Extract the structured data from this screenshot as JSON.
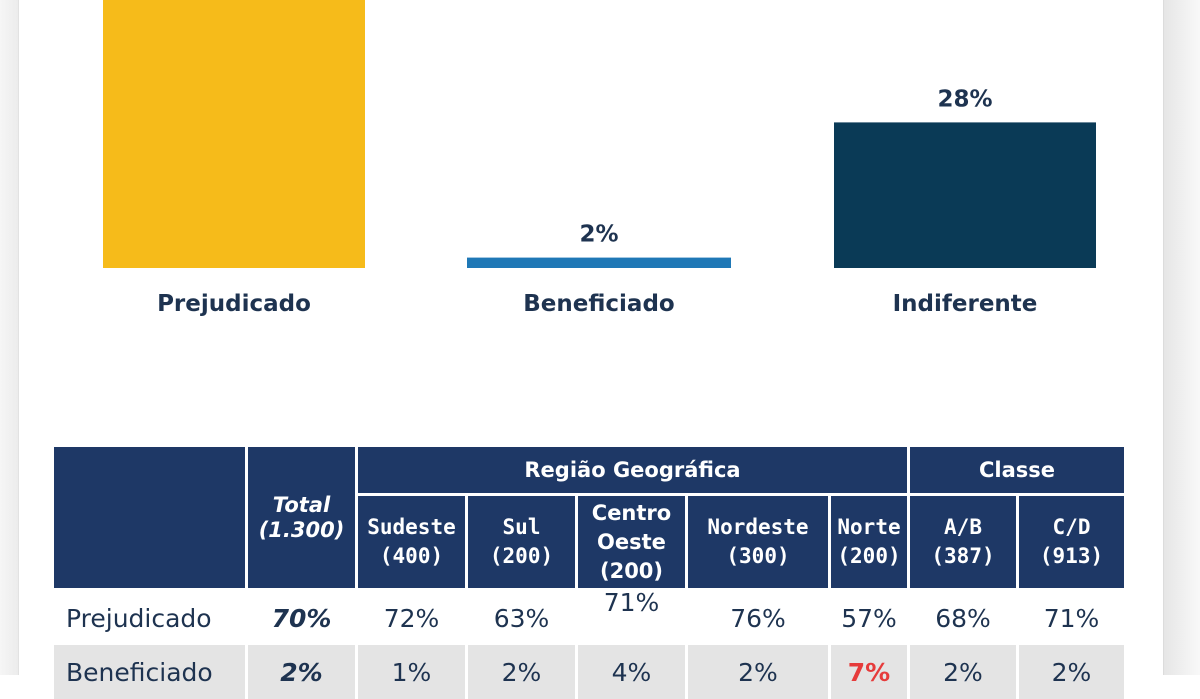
{
  "chart_data": {
    "type": "bar",
    "categories": [
      "Prejudicado",
      "Beneficiado",
      "Indiferente"
    ],
    "values": [
      70,
      2,
      28
    ],
    "value_labels": [
      "",
      "2%",
      "28%"
    ],
    "value_unit": "%",
    "colors": [
      "#f6bb1a",
      "#1f78b6",
      "#0a3a56"
    ],
    "ylim": [
      0,
      70
    ],
    "grid": false,
    "legend": "none"
  },
  "table": {
    "groups": {
      "region": "Região Geográfica",
      "class": "Classe"
    },
    "columns": {
      "total": {
        "label": "Total",
        "n": "(1.300)"
      },
      "sudeste": {
        "label": "Sudeste",
        "n": "(400)"
      },
      "sul": {
        "label": "Sul",
        "n": "(200)"
      },
      "centro": {
        "label1": "Centro",
        "label2": "Oeste",
        "n": "(200)"
      },
      "nordeste": {
        "label": "Nordeste",
        "n": "(300)"
      },
      "norte": {
        "label": "Norte",
        "n": "(200)"
      },
      "ab": {
        "label": "A/B",
        "n": "(387)"
      },
      "cd": {
        "label": "C/D",
        "n": "(913)"
      }
    },
    "rows": [
      {
        "label": "Prejudicado",
        "total": "70%",
        "sudeste": "72%",
        "sul": "63%",
        "centro": "71%",
        "nordeste": "76%",
        "norte": "57%",
        "ab": "68%",
        "cd": "71%"
      },
      {
        "label": "Beneficiado",
        "total": "2%",
        "sudeste": "1%",
        "sul": "2%",
        "centro": "4%",
        "nordeste": "2%",
        "norte": "7%",
        "ab": "2%",
        "cd": "2%"
      }
    ]
  }
}
